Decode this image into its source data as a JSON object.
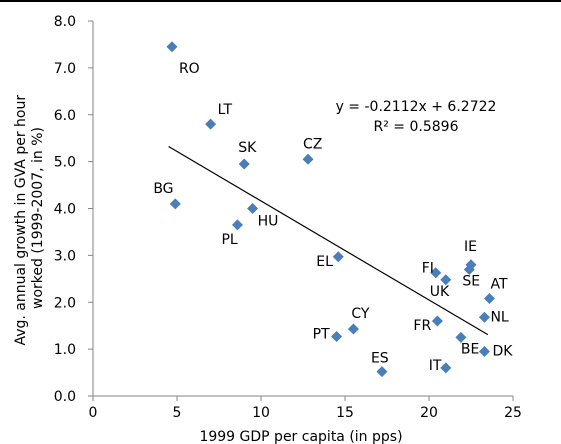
{
  "chart_data": {
    "type": "scatter",
    "title": "",
    "xlabel": "1999 GDP per capita (in pps)",
    "ylabel_line1": "Avg. annual growth  in GVA per hour",
    "ylabel_line2": "worked (1999-2007, in %)",
    "xlim": [
      0,
      25
    ],
    "ylim": [
      0.0,
      8.0
    ],
    "x_ticks": [
      0,
      5,
      10,
      15,
      20,
      25
    ],
    "y_ticks": [
      0.0,
      1.0,
      2.0,
      3.0,
      4.0,
      5.0,
      6.0,
      7.0,
      8.0
    ],
    "x_tick_labels": [
      "0",
      "5",
      "10",
      "15",
      "20",
      "25"
    ],
    "y_tick_labels": [
      "0.0",
      "1.0",
      "2.0",
      "3.0",
      "4.0",
      "5.0",
      "6.0",
      "7.0",
      "8.0"
    ],
    "grid": false,
    "marker": "diamond",
    "marker_color": "#4a7ebb",
    "points": [
      {
        "label": "RO",
        "x": 4.7,
        "y": 7.45
      },
      {
        "label": "LT",
        "x": 7.0,
        "y": 5.8
      },
      {
        "label": "SK",
        "x": 9.0,
        "y": 4.95
      },
      {
        "label": "CZ",
        "x": 12.8,
        "y": 5.05
      },
      {
        "label": "BG",
        "x": 4.9,
        "y": 4.1
      },
      {
        "label": "HU",
        "x": 9.5,
        "y": 4.0
      },
      {
        "label": "PL",
        "x": 8.6,
        "y": 3.65
      },
      {
        "label": "EL",
        "x": 14.6,
        "y": 2.97
      },
      {
        "label": "FI",
        "x": 20.4,
        "y": 2.63
      },
      {
        "label": "IE",
        "x": 22.5,
        "y": 2.8
      },
      {
        "label": "SE",
        "x": 22.4,
        "y": 2.7
      },
      {
        "label": "UK",
        "x": 21.0,
        "y": 2.48
      },
      {
        "label": "AT",
        "x": 23.6,
        "y": 2.08
      },
      {
        "label": "NL",
        "x": 23.3,
        "y": 1.68
      },
      {
        "label": "FR",
        "x": 20.5,
        "y": 1.6
      },
      {
        "label": "CY",
        "x": 15.5,
        "y": 1.43
      },
      {
        "label": "PT",
        "x": 14.5,
        "y": 1.27
      },
      {
        "label": "BE",
        "x": 21.9,
        "y": 1.25
      },
      {
        "label": "DK",
        "x": 23.3,
        "y": 0.95
      },
      {
        "label": "ES",
        "x": 17.2,
        "y": 0.52
      },
      {
        "label": "IT",
        "x": 21.0,
        "y": 0.6
      }
    ],
    "trendline": {
      "slope": -0.2112,
      "intercept": 6.2722,
      "x_range": [
        4.5,
        23.5
      ],
      "equation": "y = -0.2112x + 6.2722",
      "r_squared": "R² = 0.5896"
    }
  }
}
